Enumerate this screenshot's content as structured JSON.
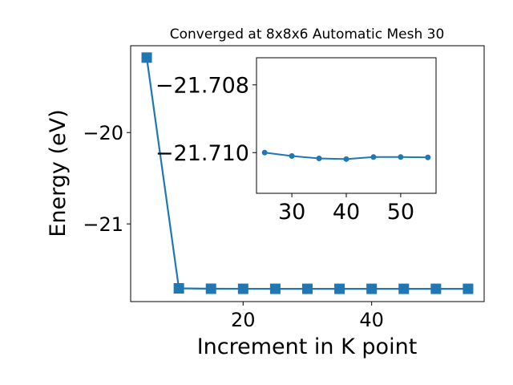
{
  "chart_data": [
    {
      "type": "line",
      "title": "Converged at 8x8x6 Automatic Mesh 30",
      "xlabel": "Increment in K point",
      "ylabel": "Energy (eV)",
      "marker": "square",
      "grid": false,
      "xlim": [
        2.5,
        57.5
      ],
      "ylim": [
        -21.85,
        -19.05
      ],
      "xticks": [
        20,
        40
      ],
      "yticks": [
        -21,
        -20
      ],
      "x": [
        5,
        10,
        15,
        20,
        25,
        30,
        35,
        40,
        45,
        50,
        55
      ],
      "series": [
        {
          "color": "#1f77b4",
          "values": [
            -19.18,
            -21.705,
            -21.7095,
            -21.7103,
            -21.7104,
            -21.7104,
            -21.7104,
            -21.7104,
            -21.7104,
            -21.7104,
            -21.7104
          ]
        }
      ]
    },
    {
      "type": "line",
      "title": "",
      "xlabel": "",
      "ylabel": "",
      "marker": "circle",
      "grid": false,
      "xlim": [
        23.5,
        56.5
      ],
      "ylim": [
        -21.7112,
        -21.7072
      ],
      "xticks": [
        30,
        40,
        50
      ],
      "yticks": [
        -21.71,
        -21.708
      ],
      "x": [
        25,
        30,
        35,
        40,
        45,
        50,
        55
      ],
      "series": [
        {
          "color": "#1f77b4",
          "values": [
            -21.71,
            -21.7101,
            -21.71017,
            -21.71019,
            -21.71013,
            -21.71013,
            -21.71014
          ]
        }
      ]
    }
  ]
}
